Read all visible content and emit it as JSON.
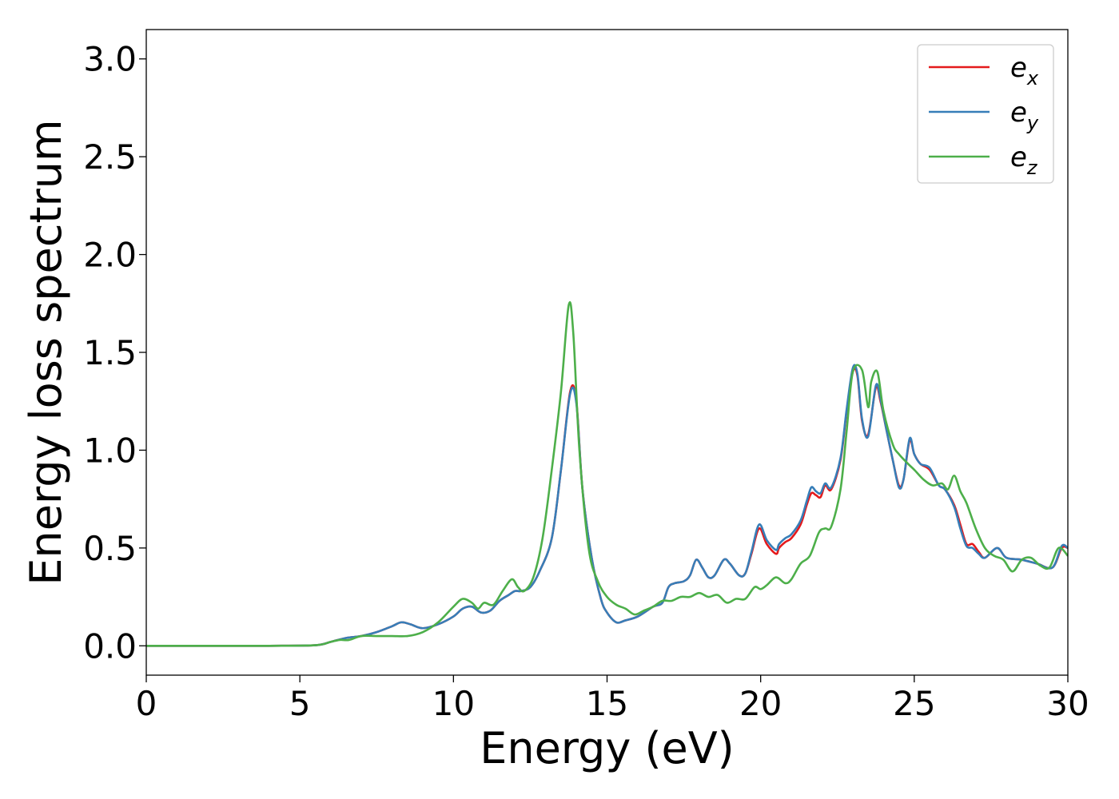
{
  "chart_data": {
    "type": "line",
    "xlabel": "Energy (eV)",
    "ylabel": "Energy loss spectrum",
    "xlim": [
      0,
      30
    ],
    "ylim": [
      -0.15,
      3.15
    ],
    "xticks": [
      0,
      5,
      10,
      15,
      20,
      25,
      30
    ],
    "xtick_labels": [
      "0",
      "5",
      "10",
      "15",
      "20",
      "25",
      "30"
    ],
    "yticks": [
      0.0,
      0.5,
      1.0,
      1.5,
      2.0,
      2.5,
      3.0
    ],
    "ytick_labels": [
      "0.0",
      "0.5",
      "1.0",
      "1.5",
      "2.0",
      "2.5",
      "3.0"
    ],
    "grid": false,
    "legend_position": "top-right",
    "series": [
      {
        "name": "e_x",
        "label_base": "e",
        "label_sub": "x",
        "color": "#e41a1c",
        "x": [
          0,
          2,
          4,
          5.5,
          6,
          6.5,
          7,
          7.5,
          8,
          8.3,
          8.6,
          9,
          9.5,
          10,
          10.3,
          10.6,
          10.9,
          11.2,
          11.5,
          11.8,
          12,
          12.2,
          12.5,
          12.8,
          13.2,
          13.5,
          13.8,
          14.0,
          14.2,
          14.5,
          14.8,
          15,
          15.3,
          15.6,
          16,
          16.5,
          16.8,
          17,
          17.2,
          17.5,
          17.7,
          17.9,
          18.1,
          18.3,
          18.5,
          18.8,
          19.0,
          19.3,
          19.5,
          19.7,
          19.95,
          20.2,
          20.5,
          20.6,
          20.8,
          21.0,
          21.3,
          21.5,
          21.65,
          21.8,
          21.95,
          22.1,
          22.3,
          22.6,
          22.8,
          23.0,
          23.15,
          23.3,
          23.5,
          23.75,
          23.9,
          24.1,
          24.3,
          24.5,
          24.65,
          24.85,
          25.0,
          25.2,
          25.5,
          25.8,
          26.0,
          26.3,
          26.5,
          26.7,
          26.9,
          27.1,
          27.3,
          27.7,
          28.0,
          28.5,
          29.0,
          29.5,
          29.8,
          30
        ],
        "y": [
          0,
          0,
          0,
          0.003,
          0.02,
          0.04,
          0.05,
          0.07,
          0.1,
          0.12,
          0.11,
          0.09,
          0.11,
          0.15,
          0.19,
          0.2,
          0.17,
          0.18,
          0.23,
          0.26,
          0.28,
          0.28,
          0.3,
          0.38,
          0.55,
          0.9,
          1.3,
          1.25,
          0.8,
          0.45,
          0.24,
          0.17,
          0.12,
          0.13,
          0.15,
          0.2,
          0.22,
          0.3,
          0.32,
          0.33,
          0.36,
          0.44,
          0.4,
          0.35,
          0.36,
          0.44,
          0.42,
          0.36,
          0.37,
          0.47,
          0.6,
          0.52,
          0.47,
          0.5,
          0.53,
          0.55,
          0.62,
          0.72,
          0.78,
          0.77,
          0.76,
          0.82,
          0.8,
          0.95,
          1.2,
          1.4,
          1.38,
          1.15,
          1.08,
          1.32,
          1.25,
          1.1,
          0.95,
          0.82,
          0.85,
          1.05,
          0.98,
          0.93,
          0.9,
          0.82,
          0.8,
          0.72,
          0.62,
          0.52,
          0.52,
          0.48,
          0.45,
          0.5,
          0.45,
          0.44,
          0.42,
          0.4,
          0.5,
          0.5
        ]
      },
      {
        "name": "e_y",
        "label_base": "e",
        "label_sub": "y",
        "color": "#377eb8",
        "x": [
          0,
          2,
          4,
          5.5,
          6,
          6.5,
          7,
          7.5,
          8,
          8.3,
          8.6,
          9,
          9.5,
          10,
          10.3,
          10.6,
          10.9,
          11.2,
          11.5,
          11.8,
          12,
          12.2,
          12.5,
          12.8,
          13.2,
          13.5,
          13.8,
          14.0,
          14.2,
          14.5,
          14.8,
          15,
          15.3,
          15.6,
          16,
          16.5,
          16.8,
          17,
          17.2,
          17.5,
          17.7,
          17.9,
          18.1,
          18.3,
          18.5,
          18.8,
          19.0,
          19.3,
          19.5,
          19.7,
          19.95,
          20.2,
          20.5,
          20.6,
          20.8,
          21.0,
          21.3,
          21.5,
          21.65,
          21.8,
          21.95,
          22.1,
          22.3,
          22.6,
          22.8,
          23.0,
          23.15,
          23.3,
          23.5,
          23.75,
          23.9,
          24.1,
          24.3,
          24.5,
          24.65,
          24.85,
          25.0,
          25.2,
          25.5,
          25.8,
          26.0,
          26.3,
          26.5,
          26.7,
          26.9,
          27.1,
          27.3,
          27.7,
          28.0,
          28.5,
          29.0,
          29.5,
          29.8,
          30
        ],
        "y": [
          0,
          0,
          0,
          0.003,
          0.02,
          0.04,
          0.05,
          0.07,
          0.1,
          0.12,
          0.11,
          0.09,
          0.11,
          0.15,
          0.19,
          0.2,
          0.17,
          0.18,
          0.23,
          0.26,
          0.28,
          0.28,
          0.3,
          0.38,
          0.55,
          0.9,
          1.29,
          1.24,
          0.8,
          0.45,
          0.24,
          0.17,
          0.12,
          0.13,
          0.15,
          0.2,
          0.22,
          0.3,
          0.32,
          0.33,
          0.36,
          0.44,
          0.4,
          0.35,
          0.36,
          0.44,
          0.42,
          0.36,
          0.37,
          0.48,
          0.62,
          0.54,
          0.49,
          0.52,
          0.55,
          0.57,
          0.64,
          0.74,
          0.81,
          0.79,
          0.78,
          0.83,
          0.81,
          0.96,
          1.21,
          1.42,
          1.39,
          1.16,
          1.07,
          1.33,
          1.26,
          1.1,
          0.95,
          0.81,
          0.85,
          1.06,
          0.98,
          0.93,
          0.91,
          0.82,
          0.8,
          0.71,
          0.6,
          0.51,
          0.5,
          0.47,
          0.45,
          0.5,
          0.45,
          0.44,
          0.42,
          0.4,
          0.51,
          0.5
        ]
      },
      {
        "name": "e_z",
        "label_base": "e",
        "label_sub": "z",
        "color": "#4daf4a",
        "x": [
          0,
          2,
          4,
          5.5,
          6,
          6.3,
          6.6,
          7,
          7.5,
          8,
          8.5,
          9,
          9.5,
          10,
          10.3,
          10.6,
          10.8,
          11.0,
          11.3,
          11.6,
          11.9,
          12.1,
          12.3,
          12.6,
          12.9,
          13.2,
          13.5,
          13.75,
          13.9,
          14.1,
          14.4,
          14.7,
          15,
          15.3,
          15.6,
          15.9,
          16.2,
          16.5,
          16.8,
          17.1,
          17.4,
          17.7,
          18.0,
          18.3,
          18.6,
          18.9,
          19.2,
          19.5,
          19.8,
          20.0,
          20.2,
          20.5,
          20.8,
          21.0,
          21.3,
          21.6,
          21.9,
          22.1,
          22.3,
          22.6,
          22.8,
          23.0,
          23.3,
          23.5,
          23.6,
          23.8,
          24.0,
          24.3,
          24.5,
          24.8,
          25.0,
          25.3,
          25.6,
          25.9,
          26.1,
          26.3,
          26.5,
          26.7,
          27.0,
          27.3,
          27.6,
          27.9,
          28.2,
          28.5,
          28.8,
          29.1,
          29.4,
          29.7,
          30
        ],
        "y": [
          0,
          0,
          0,
          0.003,
          0.02,
          0.03,
          0.03,
          0.05,
          0.05,
          0.05,
          0.05,
          0.07,
          0.12,
          0.2,
          0.24,
          0.22,
          0.19,
          0.22,
          0.21,
          0.28,
          0.34,
          0.3,
          0.28,
          0.35,
          0.55,
          0.9,
          1.3,
          1.74,
          1.6,
          1.0,
          0.5,
          0.33,
          0.25,
          0.21,
          0.19,
          0.16,
          0.18,
          0.2,
          0.23,
          0.23,
          0.25,
          0.25,
          0.27,
          0.25,
          0.26,
          0.22,
          0.24,
          0.24,
          0.3,
          0.29,
          0.31,
          0.35,
          0.32,
          0.34,
          0.42,
          0.46,
          0.58,
          0.6,
          0.61,
          0.8,
          1.1,
          1.4,
          1.41,
          1.22,
          1.35,
          1.4,
          1.2,
          1.03,
          0.98,
          0.93,
          0.9,
          0.85,
          0.82,
          0.83,
          0.8,
          0.87,
          0.79,
          0.73,
          0.6,
          0.5,
          0.46,
          0.44,
          0.38,
          0.44,
          0.45,
          0.41,
          0.4,
          0.5,
          0.46
        ]
      }
    ]
  }
}
